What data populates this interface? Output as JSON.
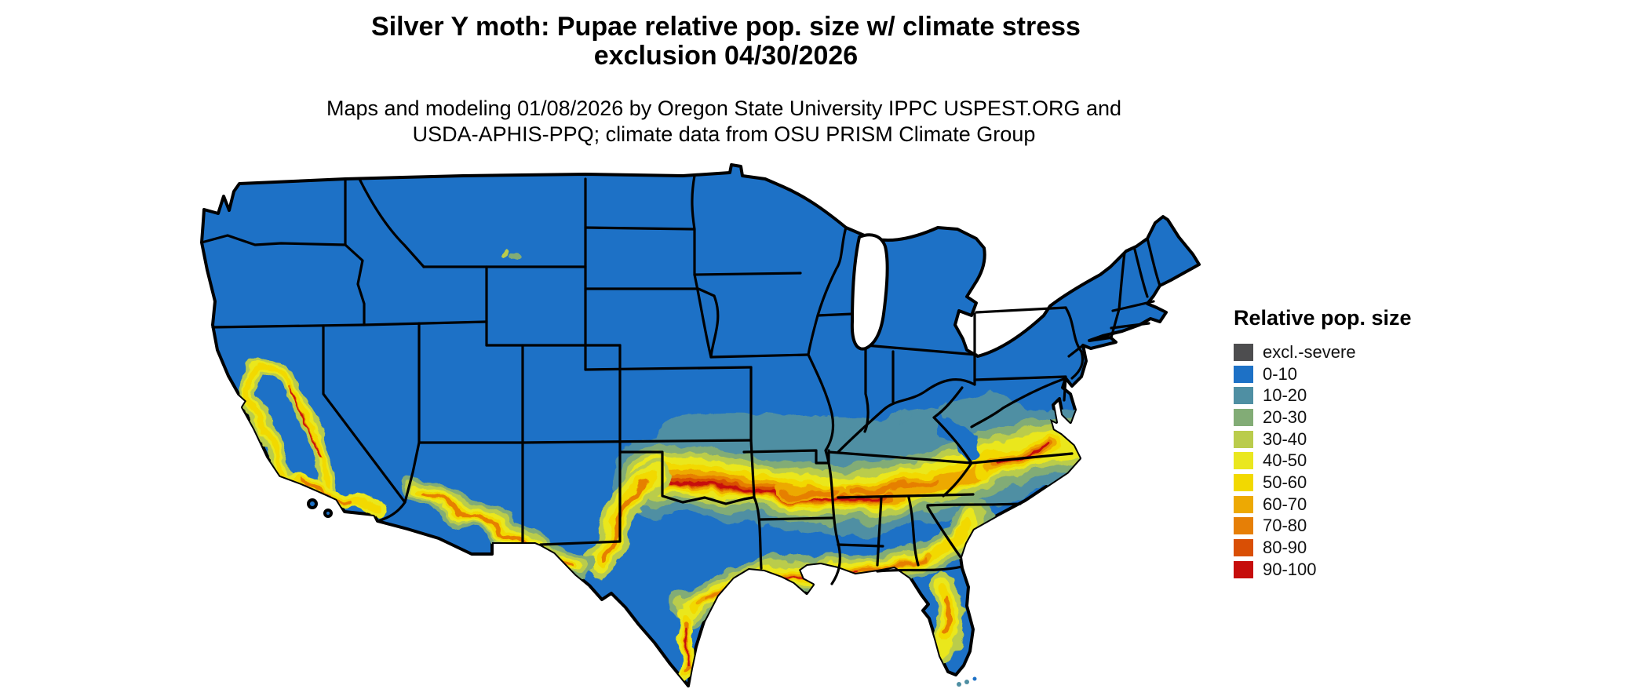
{
  "header": {
    "title_line1": "Silver Y moth: Pupae relative pop. size w/ climate stress",
    "title_line2": "exclusion 04/30/2026",
    "subtitle_line1": "Maps and modeling 01/08/2026 by Oregon State University IPPC USPEST.ORG and",
    "subtitle_line2": "USDA-APHIS-PPQ; climate data from OSU PRISM Climate Group"
  },
  "legend": {
    "title": "Relative pop. size",
    "items": [
      {
        "label": "excl.-severe",
        "color": "#4d4d4f"
      },
      {
        "label": "0-10",
        "color": "#1d71c6"
      },
      {
        "label": "10-20",
        "color": "#4f8fa3"
      },
      {
        "label": "20-30",
        "color": "#82ac76"
      },
      {
        "label": "30-40",
        "color": "#bacc4c"
      },
      {
        "label": "40-50",
        "color": "#eae71f"
      },
      {
        "label": "50-60",
        "color": "#f2d900"
      },
      {
        "label": "60-70",
        "color": "#eda903"
      },
      {
        "label": "70-80",
        "color": "#e67f06"
      },
      {
        "label": "80-90",
        "color": "#d94f05"
      },
      {
        "label": "90-100",
        "color": "#c60d0b"
      }
    ]
  },
  "map": {
    "land_base_color": "#1d71c6",
    "border_color": "#000000",
    "water_color": "#ffffff"
  }
}
